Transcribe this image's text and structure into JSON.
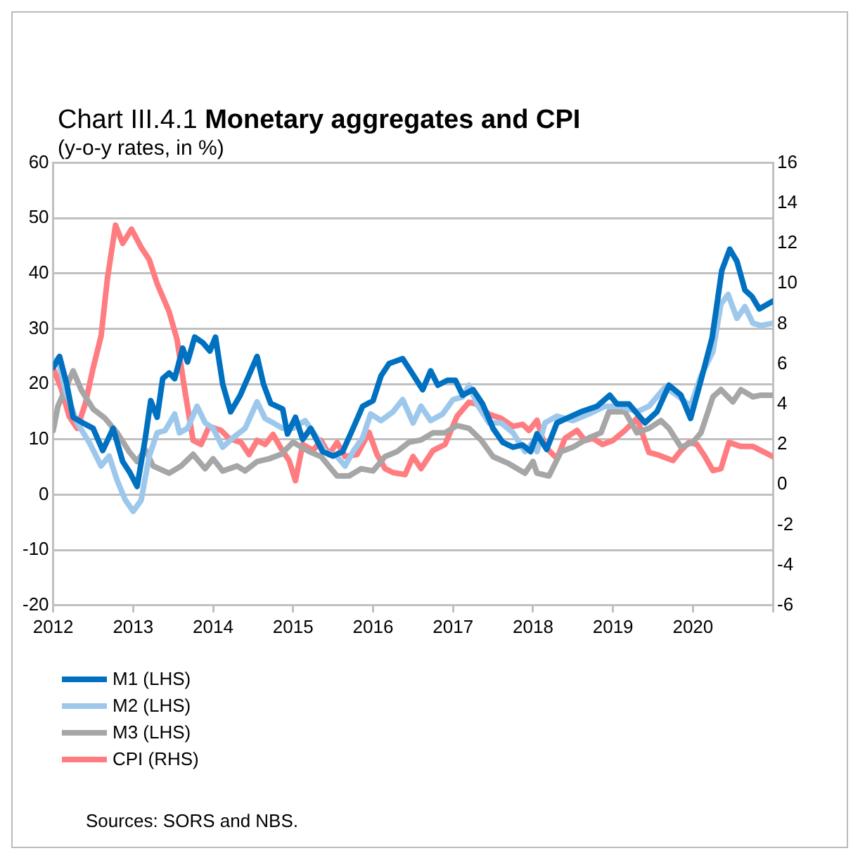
{
  "chart_data": {
    "type": "line",
    "title": "Chart III.4.1 Monetary aggregates and CPI",
    "subtitle": "(y-o-y rates, in %)",
    "annotations": [
      "Sources: SORS and NBS."
    ],
    "xlim": [
      2012,
      2021
    ],
    "xticks": [
      2012,
      2013,
      2014,
      2015,
      2016,
      2017,
      2018,
      2019,
      2020,
      {
        "value": 2021,
        "label": null
      }
    ],
    "ylim": [
      -20,
      60
    ],
    "yticks": [
      -20,
      -10,
      0,
      10,
      20,
      30,
      40,
      50,
      60
    ],
    "y2lim": [
      -6,
      16
    ],
    "y2ticks": [
      -6,
      -4,
      -2,
      0,
      2,
      4,
      6,
      8,
      10,
      12,
      14,
      16
    ],
    "grid": "y",
    "legend": "bottom",
    "marker": "none",
    "line_style": "solid",
    "series": [
      {
        "name": "M1 (LHS)",
        "color": "#0070c0",
        "x": [
          2012,
          2012.08,
          2012.17,
          2012.25,
          2012.37,
          2012.5,
          2012.62,
          2012.75,
          2012.87,
          2012.96,
          2013.05,
          2013.15,
          2013.22,
          2013.3,
          2013.37,
          2013.45,
          2013.52,
          2013.62,
          2013.68,
          2013.77,
          2013.87,
          2013.96,
          2014.03,
          2014.12,
          2014.22,
          2014.34,
          2014.46,
          2014.55,
          2014.63,
          2014.72,
          2014.87,
          2014.93,
          2015.03,
          2015.12,
          2015.22,
          2015.37,
          2015.5,
          2015.62,
          2015.75,
          2015.87,
          2016,
          2016.1,
          2016.2,
          2016.37,
          2016.47,
          2016.62,
          2016.72,
          2016.81,
          2016.93,
          2017.03,
          2017.12,
          2017.25,
          2017.37,
          2017.5,
          2017.62,
          2017.75,
          2017.87,
          2017.97,
          2018.05,
          2018.17,
          2018.3,
          2018.42,
          2018.6,
          2018.8,
          2018.96,
          2019.05,
          2019.2,
          2019.4,
          2019.55,
          2019.7,
          2019.85,
          2019.97,
          2020.1,
          2020.24,
          2020.36,
          2020.46,
          2020.55,
          2020.65,
          2020.74,
          2020.83,
          2021
        ],
        "values": [
          23,
          25,
          20,
          14,
          13,
          12,
          8,
          12,
          6,
          4,
          1.5,
          10,
          17,
          14,
          21,
          22,
          21,
          26.5,
          24,
          28.5,
          27.5,
          26,
          28.5,
          20,
          15,
          18,
          22,
          25,
          20,
          16.5,
          15.5,
          11,
          14,
          10,
          12,
          7.8,
          7,
          7.8,
          12,
          16,
          17,
          21.5,
          23.7,
          24.6,
          22.4,
          19,
          22.4,
          19.8,
          20.7,
          20.7,
          18,
          19,
          16.4,
          12,
          9.5,
          8.6,
          9,
          7.8,
          11,
          8.2,
          13,
          13.8,
          15,
          16,
          18,
          16.4,
          16.4,
          13,
          15,
          19.8,
          18,
          13.8,
          20.7,
          28.4,
          40.5,
          44.4,
          42.2,
          37,
          35.8,
          33.6,
          35
        ]
      },
      {
        "name": "M2 (LHS)",
        "color": "#9dc8ec",
        "x": [
          2012,
          2012.06,
          2012.15,
          2012.3,
          2012.45,
          2012.6,
          2012.7,
          2012.8,
          2012.9,
          2013,
          2013.1,
          2013.2,
          2013.3,
          2013.4,
          2013.52,
          2013.58,
          2013.68,
          2013.8,
          2013.9,
          2014,
          2014.12,
          2014.25,
          2014.4,
          2014.55,
          2014.65,
          2014.75,
          2014.87,
          2015,
          2015.15,
          2015.3,
          2015.4,
          2015.55,
          2015.65,
          2015.75,
          2015.87,
          2015.97,
          2016.1,
          2016.25,
          2016.37,
          2016.5,
          2016.6,
          2016.72,
          2016.87,
          2017,
          2017.12,
          2017.2,
          2017.3,
          2017.45,
          2017.6,
          2017.75,
          2017.9,
          2018,
          2018.05,
          2018.15,
          2018.3,
          2018.5,
          2018.7,
          2018.9,
          2019.1,
          2019.3,
          2019.45,
          2019.65,
          2019.8,
          2019.97,
          2020.1,
          2020.25,
          2020.35,
          2020.44,
          2020.55,
          2020.65,
          2020.75,
          2020.85,
          2021
        ],
        "values": [
          23.7,
          24.6,
          19,
          13,
          9.5,
          5.2,
          7,
          2.6,
          -0.9,
          -3,
          -1,
          6.9,
          11.2,
          11.6,
          14.6,
          11.2,
          12,
          16,
          13,
          12,
          8.6,
          10.3,
          12,
          16.8,
          13.8,
          13,
          12,
          12,
          13.4,
          10.3,
          7.8,
          6.9,
          5.2,
          7.8,
          10.3,
          14.6,
          13.4,
          15,
          17.2,
          13,
          16,
          13.4,
          14.6,
          17.2,
          17.7,
          19.8,
          16.4,
          13,
          13,
          11.2,
          7.8,
          9.5,
          7.8,
          13,
          14.2,
          13.4,
          14.6,
          16,
          16,
          15,
          16,
          19.4,
          18,
          16,
          21.5,
          25.9,
          34.5,
          36.2,
          31.9,
          34,
          31,
          30.6,
          31
        ]
      },
      {
        "name": "M3 (LHS)",
        "color": "#a6a6a6",
        "x": [
          2012,
          2012.06,
          2012.2,
          2012.25,
          2012.35,
          2012.5,
          2012.65,
          2012.8,
          2012.95,
          2013.05,
          2013.15,
          2013.25,
          2013.45,
          2013.6,
          2013.75,
          2013.9,
          2014,
          2014.12,
          2014.3,
          2014.4,
          2014.55,
          2014.7,
          2014.85,
          2015,
          2015.2,
          2015.35,
          2015.55,
          2015.7,
          2015.85,
          2016,
          2016.15,
          2016.3,
          2016.45,
          2016.6,
          2016.75,
          2016.9,
          2017.05,
          2017.2,
          2017.35,
          2017.5,
          2017.7,
          2017.9,
          2018,
          2018.05,
          2018.2,
          2018.35,
          2018.5,
          2018.7,
          2018.85,
          2018.95,
          2019.15,
          2019.3,
          2019.45,
          2019.6,
          2019.7,
          2019.85,
          2020,
          2020.1,
          2020.25,
          2020.35,
          2020.5,
          2020.6,
          2020.75,
          2020.85,
          2021
        ],
        "values": [
          11.6,
          16,
          20.7,
          22.4,
          19,
          15.5,
          13.8,
          11.2,
          7.8,
          6,
          8.2,
          5.2,
          3.9,
          5.2,
          7.3,
          4.7,
          6.5,
          4.3,
          5.2,
          4.3,
          6,
          6.5,
          7.3,
          9.5,
          7.8,
          6.9,
          3.4,
          3.4,
          4.7,
          4.3,
          6.9,
          7.8,
          9.5,
          9.9,
          11.2,
          11.2,
          12.5,
          12,
          9.9,
          6.9,
          5.6,
          3.9,
          6,
          3.9,
          3.4,
          7.8,
          8.6,
          10.3,
          11.2,
          15,
          15,
          11.2,
          12,
          13.4,
          12,
          8.6,
          9.5,
          11.2,
          17.7,
          19,
          16.8,
          19,
          17.7,
          18,
          18
        ]
      },
      {
        "name": "CPI (RHS)",
        "color": "#ff7c80",
        "axis": "y2",
        "x": [
          2012,
          2012.1,
          2012.2,
          2012.3,
          2012.4,
          2012.5,
          2012.6,
          2012.68,
          2012.78,
          2012.87,
          2012.98,
          2013.1,
          2013.2,
          2013.3,
          2013.45,
          2013.55,
          2013.65,
          2013.75,
          2013.85,
          2013.95,
          2014.1,
          2014.2,
          2014.35,
          2014.45,
          2014.55,
          2014.65,
          2014.75,
          2014.85,
          2014.95,
          2015.03,
          2015.12,
          2015.25,
          2015.35,
          2015.45,
          2015.55,
          2015.65,
          2015.8,
          2015.95,
          2016.05,
          2016.15,
          2016.25,
          2016.4,
          2016.5,
          2016.6,
          2016.75,
          2016.9,
          2017.05,
          2017.2,
          2017.3,
          2017.45,
          2017.6,
          2017.75,
          2017.87,
          2017.95,
          2018.05,
          2018.15,
          2018.3,
          2018.4,
          2018.55,
          2018.65,
          2018.75,
          2018.87,
          2019,
          2019.15,
          2019.3,
          2019.45,
          2019.55,
          2019.75,
          2019.85,
          2019.95,
          2020.05,
          2020.15,
          2020.25,
          2020.35,
          2020.45,
          2020.6,
          2020.75,
          2020.85,
          2021
        ],
        "values": [
          5.8,
          4.8,
          3.4,
          2.8,
          4,
          5.8,
          7.4,
          10.3,
          12.9,
          12,
          12.7,
          11.8,
          11.2,
          10,
          8.6,
          7.2,
          4.6,
          2.2,
          2,
          2.9,
          2.7,
          2.3,
          2.1,
          1.5,
          2.2,
          2,
          2.5,
          1.8,
          1.2,
          0.2,
          2,
          1.7,
          2.2,
          1.5,
          2.1,
          1.4,
          1.5,
          2.6,
          1.5,
          0.8,
          0.6,
          0.5,
          1.4,
          0.8,
          1.7,
          2,
          3.4,
          4.1,
          4,
          3.5,
          3.3,
          2.9,
          3,
          2.7,
          3.2,
          1.9,
          1.3,
          2.3,
          2.7,
          2.2,
          2.3,
          2,
          2.2,
          2.7,
          3.3,
          1.6,
          1.5,
          1.2,
          1.7,
          2.1,
          2,
          1.4,
          0.7,
          0.8,
          2.1,
          1.9,
          1.9,
          1.7,
          1.4
        ]
      }
    ]
  }
}
